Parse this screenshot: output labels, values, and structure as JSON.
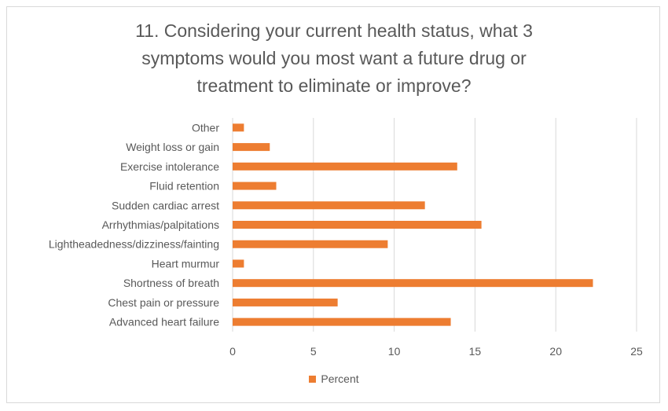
{
  "chart_data": {
    "type": "bar",
    "orientation": "horizontal",
    "title_lines": [
      "11. Considering your current health status, what 3",
      "symptoms would you most want a future drug or",
      "treatment to eliminate or improve?"
    ],
    "categories": [
      "Other",
      "Weight loss or gain",
      "Exercise intolerance",
      "Fluid retention",
      "Sudden cardiac arrest",
      "Arrhythmias/palpitations",
      "Lightheadedness/dizziness/fainting",
      "Heart murmur",
      "Shortness of breath",
      "Chest pain or pressure",
      "Advanced heart failure"
    ],
    "series": [
      {
        "name": "Percent",
        "color": "#ED7D31",
        "values": [
          0.7,
          2.3,
          13.9,
          2.7,
          11.9,
          15.4,
          9.6,
          0.7,
          22.3,
          6.5,
          13.5
        ]
      }
    ],
    "xlim": [
      0,
      25
    ],
    "xticks": [
      "0",
      "5",
      "10",
      "15",
      "20",
      "25"
    ],
    "grid": "vertical",
    "legend_position": "bottom"
  }
}
